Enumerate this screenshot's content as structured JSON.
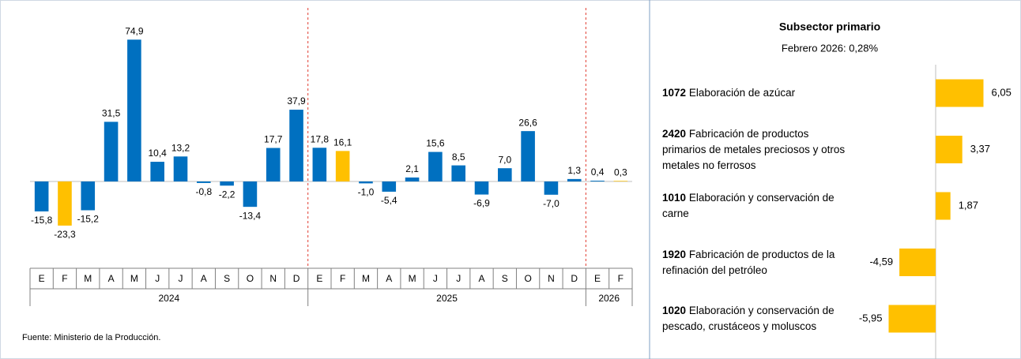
{
  "chart_data": [
    {
      "type": "bar",
      "groups": [
        {
          "name": "2024",
          "categories": [
            "E",
            "F",
            "M",
            "A",
            "M",
            "J",
            "J",
            "A",
            "S",
            "O",
            "N",
            "D"
          ]
        },
        {
          "name": "2025",
          "categories": [
            "E",
            "F",
            "M",
            "A",
            "M",
            "J",
            "J",
            "A",
            "S",
            "O",
            "N",
            "D"
          ]
        },
        {
          "name": "2026",
          "categories": [
            "E",
            "F"
          ]
        }
      ],
      "values": [
        -15.8,
        -23.3,
        -15.2,
        31.5,
        74.9,
        10.4,
        13.2,
        -0.8,
        -2.2,
        -13.4,
        17.7,
        37.9,
        17.8,
        16.1,
        -1.0,
        -5.4,
        2.1,
        15.6,
        8.5,
        -6.9,
        7.0,
        26.6,
        -7.0,
        1.3,
        0.4,
        0.3
      ],
      "value_labels": [
        "-15,8",
        "-23,3",
        "-15,2",
        "31,5",
        "74,9",
        "10,4",
        "13,2",
        "-0,8",
        "-2,2",
        "-13,4",
        "17,7",
        "37,9",
        "17,8",
        "16,1",
        "-1,0",
        "-5,4",
        "2,1",
        "15,6",
        "8,5",
        "-6,9",
        "7,0",
        "26,6",
        "-7,0",
        "1,3",
        "0,4",
        "0,3"
      ],
      "colors": [
        "#0070c0",
        "#ffc000",
        "#0070c0",
        "#0070c0",
        "#0070c0",
        "#0070c0",
        "#0070c0",
        "#0070c0",
        "#0070c0",
        "#0070c0",
        "#0070c0",
        "#0070c0",
        "#0070c0",
        "#ffc000",
        "#0070c0",
        "#0070c0",
        "#0070c0",
        "#0070c0",
        "#0070c0",
        "#0070c0",
        "#0070c0",
        "#0070c0",
        "#0070c0",
        "#0070c0",
        "#0070c0",
        "#ffc000"
      ],
      "ylim": [
        -45,
        85
      ],
      "note": "Fuente: Ministerio de la Producción."
    },
    {
      "type": "barh",
      "title": "Subsector primario",
      "subtitle": "Febrero 2026: 0,28%",
      "categories": [
        {
          "code": "1072",
          "name": "Elaboración de azúcar"
        },
        {
          "code": "2420",
          "name": "Fabricación de productos primarios de metales preciosos y otros metales no ferrosos"
        },
        {
          "code": "1010",
          "name": "Elaboración y conservación de carne"
        },
        {
          "code": "1920",
          "name": "Fabricación de productos de la refinación del petróleo"
        },
        {
          "code": "1020",
          "name": "Elaboración y conservación de pescado, crustáceos y moluscos"
        }
      ],
      "values": [
        6.05,
        3.37,
        1.87,
        -4.59,
        -5.95
      ],
      "value_labels": [
        "6,05",
        "3,37",
        "1,87",
        "-4,59",
        "-5,95"
      ],
      "color": "#ffc000",
      "xlim": [
        -12.4,
        7.6
      ]
    }
  ]
}
